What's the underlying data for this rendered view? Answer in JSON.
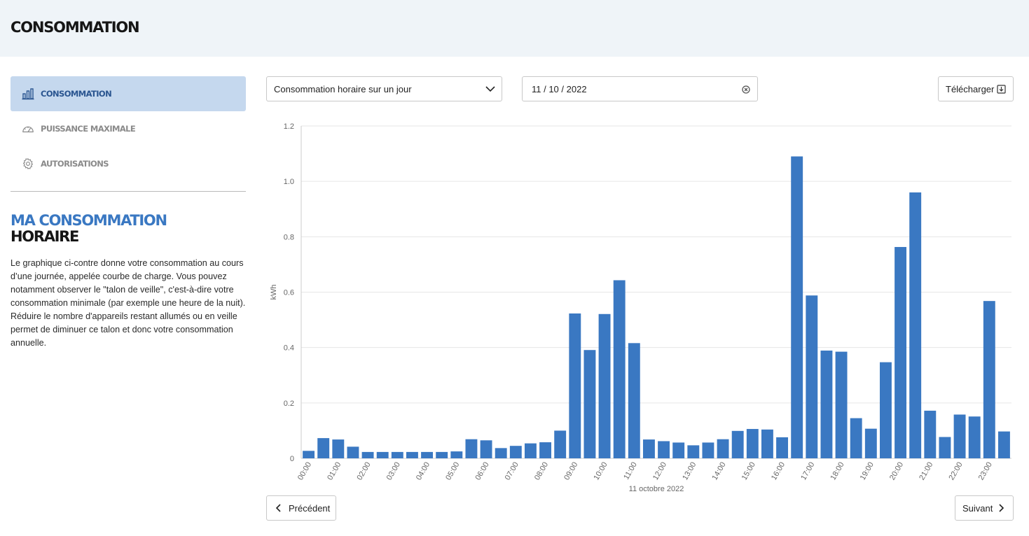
{
  "header": {
    "title": "CONSOMMATION"
  },
  "sidebar": {
    "items": [
      {
        "label": "CONSOMMATION",
        "icon": "bar-chart-icon",
        "active": true
      },
      {
        "label": "PUISSANCE MAXIMALE",
        "icon": "gauge-icon",
        "active": false
      },
      {
        "label": "AUTORISATIONS",
        "icon": "gear-icon",
        "active": false
      }
    ]
  },
  "info": {
    "title_line1": "MA CONSOMMATION",
    "title_line2": "HORAIRE",
    "text": "Le graphique ci-contre donne votre consommation au cours d’une journée, appelée courbe de charge. Vous pouvez notamment observer le \"talon de veille\", c'est-à-dire votre consommation minimale (par exemple une heure de la nuit). Réduire le nombre d'appareils restant allumés ou en veille permet de diminuer ce talon et donc votre consommation annuelle."
  },
  "controls": {
    "period_select": "Consommation horaire sur un jour",
    "date_value": "11 / 10 / 2022",
    "download_label": "Télécharger"
  },
  "nav_buttons": {
    "prev_label": "Précédent",
    "next_label": "Suivant"
  },
  "colors": {
    "accent": "#3a78c2",
    "bar": "#3a78c2",
    "active_bg": "#c5d8ee",
    "header_bg": "#eff4f8"
  },
  "chart_data": {
    "type": "bar",
    "ylabel": "kWh",
    "xlabel": "11 octobre 2022",
    "ylim": [
      0,
      1.2
    ],
    "yticks": [
      "0",
      "0.2",
      "0.4",
      "0.6",
      "0.8",
      "1.0",
      "1.2"
    ],
    "grid": true,
    "xtick_labels": [
      "00:00",
      "01:00",
      "02:00",
      "03:00",
      "04:00",
      "05:00",
      "06:00",
      "07:00",
      "08:00",
      "09:00",
      "10:00",
      "11:00",
      "12:00",
      "13:00",
      "14:00",
      "15:00",
      "16:00",
      "17:00",
      "18:00",
      "19:00",
      "20:00",
      "21:00",
      "22:00",
      "23:00"
    ],
    "categories": [
      "00:00",
      "00:30",
      "01:00",
      "01:30",
      "02:00",
      "02:30",
      "03:00",
      "03:30",
      "04:00",
      "04:30",
      "05:00",
      "05:30",
      "06:00",
      "06:30",
      "07:00",
      "07:30",
      "08:00",
      "08:30",
      "09:00",
      "09:30",
      "10:00",
      "10:30",
      "11:00",
      "11:30",
      "12:00",
      "12:30",
      "13:00",
      "13:30",
      "14:00",
      "14:30",
      "15:00",
      "15:30",
      "16:00",
      "16:30",
      "17:00",
      "17:30",
      "18:00",
      "18:30",
      "19:00",
      "19:30",
      "20:00",
      "20:30",
      "21:00",
      "21:30",
      "22:00",
      "22:30",
      "23:00",
      "23:30"
    ],
    "values": [
      0.027,
      0.073,
      0.068,
      0.042,
      0.023,
      0.023,
      0.023,
      0.023,
      0.023,
      0.023,
      0.025,
      0.069,
      0.065,
      0.037,
      0.045,
      0.054,
      0.058,
      0.1,
      0.523,
      0.391,
      0.521,
      0.643,
      0.416,
      0.068,
      0.062,
      0.057,
      0.047,
      0.057,
      0.069,
      0.099,
      0.106,
      0.104,
      0.076,
      1.09,
      0.588,
      0.389,
      0.385,
      0.145,
      0.107,
      0.347,
      0.763,
      0.96,
      0.172,
      0.077,
      0.158,
      0.151,
      0.568,
      0.097
    ]
  }
}
